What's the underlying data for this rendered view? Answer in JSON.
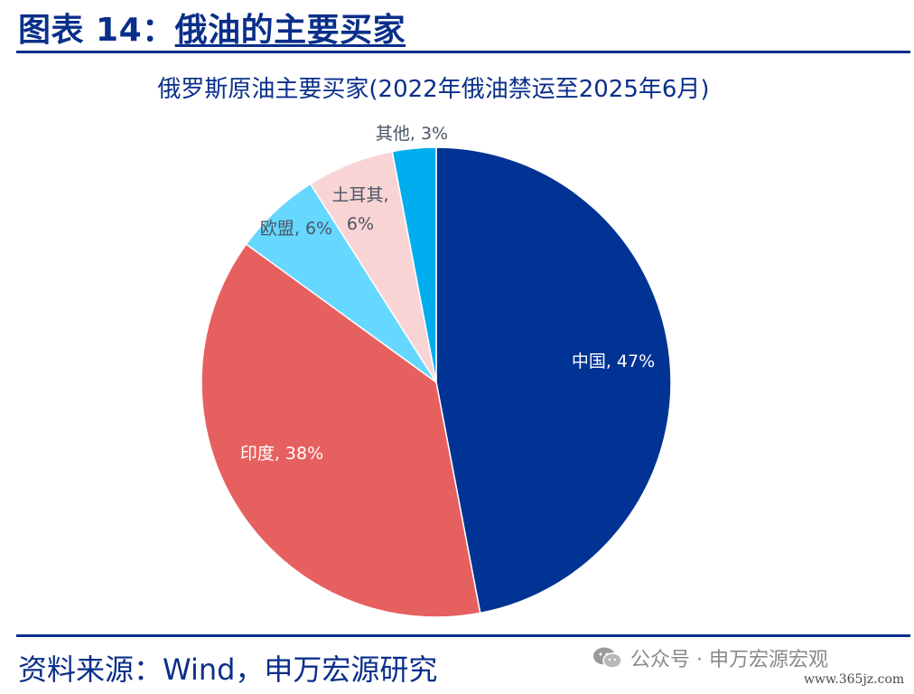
{
  "figure": {
    "label": "图表 14：",
    "title": "俄油的主要买家"
  },
  "chart_data": {
    "type": "pie",
    "title": "俄罗斯原油主要买家(2022年俄油禁运至2025年6月)",
    "unit": "%",
    "slices": [
      {
        "name": "中国",
        "value": 47,
        "label": "中国, 47%",
        "color": "#003393",
        "label_color": "#ffffff"
      },
      {
        "name": "印度",
        "value": 38,
        "label": "印度, 38%",
        "color": "#e66060",
        "label_color": "#ffffff"
      },
      {
        "name": "欧盟",
        "value": 6,
        "label": "欧盟, 6%",
        "color": "#66d7ff",
        "label_color": "#4a5565"
      },
      {
        "name": "土耳其",
        "value": 6,
        "label": "土耳其, 6%",
        "color": "#f9d4d4",
        "label_color": "#4a5565"
      },
      {
        "name": "其他",
        "value": 3,
        "label": "其他, 3%",
        "color": "#00adee",
        "label_color": "#4a5565"
      }
    ]
  },
  "source": "资料来源：Wind，申万宏源研究",
  "watermark": {
    "icon": "wechat-icon",
    "text": "公众号 · 申万宏源宏观",
    "url": "www.365jz.com"
  }
}
